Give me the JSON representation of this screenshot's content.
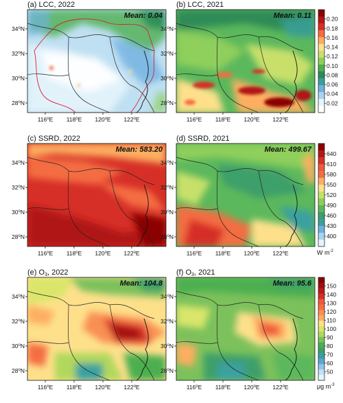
{
  "figure": {
    "panels": [
      {
        "label": "(a) LCC, 2022",
        "mean": "Mean: 0.04",
        "var": "lcc",
        "year": "2022"
      },
      {
        "label": "(b) LCC, 2021",
        "mean": "Mean: 0.11",
        "var": "lcc",
        "year": "2021"
      },
      {
        "label": "(c) SSRD, 2022",
        "mean": "Mean: 583.20",
        "var": "ssrd",
        "year": "2022"
      },
      {
        "label": "(d) SSRD, 2021",
        "mean": "Mean: 499.67",
        "var": "ssrd",
        "year": "2021"
      },
      {
        "label": "(e) O",
        "label_sub": "3",
        "label_rest": ", 2022",
        "mean": "Mean: 104.8",
        "var": "o3",
        "year": "2022"
      },
      {
        "label": "(f) O",
        "label_sub": "3",
        "label_rest": ", 2021",
        "mean": "Mean: 95.6",
        "var": "o3",
        "year": "2021"
      }
    ],
    "lat_ticks": [
      "34",
      "32",
      "30",
      "28"
    ],
    "lon_ticks": [
      "116",
      "118",
      "120",
      "122"
    ],
    "lat_suffix": "N",
    "lon_suffix": "E",
    "colorbars": [
      {
        "var": "lcc",
        "ticks": [
          "0.20",
          "0.18",
          "0.16",
          "0.14",
          "0.12",
          "0.10",
          "0.08",
          "0.06",
          "0.04",
          "0.02"
        ],
        "unit": "",
        "colors": [
          "#8b0000",
          "#b01818",
          "#d62f27",
          "#f46d43",
          "#fdae61",
          "#fee08b",
          "#c8e06a",
          "#8fcf5c",
          "#4caf50",
          "#2e8b57",
          "#3aa0a0",
          "#6fb0e0",
          "#a8d4f0",
          "#e6f4fc",
          "#ffffff"
        ]
      },
      {
        "var": "ssrd",
        "ticks": [
          "640",
          "610",
          "580",
          "550",
          "520",
          "490",
          "460",
          "430",
          "400"
        ],
        "unit": "W m",
        "unit_sup": "-2",
        "colors": [
          "#8b0000",
          "#b01818",
          "#d62f27",
          "#ee5a3a",
          "#f46d43",
          "#fdae61",
          "#fee08b",
          "#c8e06a",
          "#8fcf5c",
          "#5cb85c",
          "#3d9f6b",
          "#3aa0a0",
          "#6fb0e0",
          "#a8d4f0",
          "#e6f4fc"
        ]
      },
      {
        "var": "o3",
        "ticks": [
          "150",
          "140",
          "130",
          "120",
          "110",
          "100",
          "90",
          "80",
          "70",
          "60",
          "50"
        ],
        "unit": "μg m",
        "unit_sup": "-3",
        "colors": [
          "#8b0000",
          "#a01010",
          "#b81c1c",
          "#d62f27",
          "#ee5a3a",
          "#f46d43",
          "#f98f52",
          "#fdae61",
          "#fee08b",
          "#d9e66a",
          "#b0d85c",
          "#7cc15b",
          "#4caf50",
          "#3d9f6b",
          "#3aa0a0",
          "#5aa8d0",
          "#8cc6ec",
          "#c2e2f6",
          "#e6f4fc"
        ]
      }
    ],
    "palette": {
      "coast": "#111111",
      "boundary": "#222222",
      "highlight_boundary": "#d62034"
    }
  }
}
